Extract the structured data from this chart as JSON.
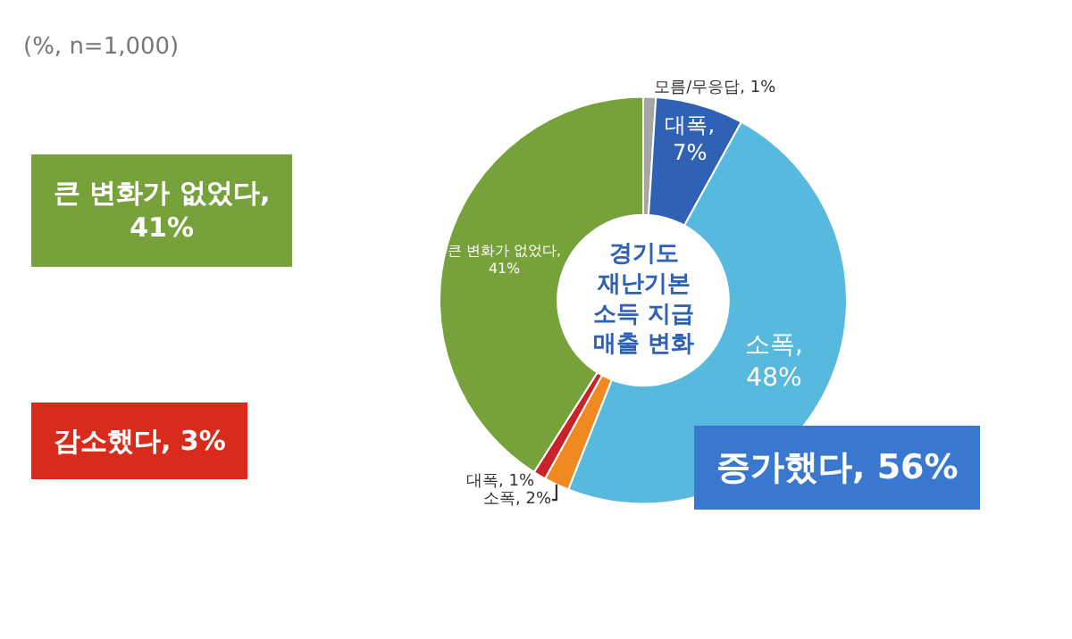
{
  "chart_data": {
    "type": "donut",
    "categories": [
      "모름/무응답",
      "대폭",
      "소폭",
      "소폭",
      "대폭",
      "큰 변화가 없었다"
    ],
    "values": [
      1,
      7,
      48,
      2,
      1,
      41
    ],
    "colors": [
      "#a6a6a6",
      "#2f62b5",
      "#57b9de",
      "#ef8a22",
      "#c8232b",
      "#77a13a"
    ],
    "value_labels": [
      ", 1%",
      ",\n7%",
      ",\n48%",
      ", 2%",
      ", 1%",
      ",\n41%"
    ],
    "legend": false,
    "annotations": [
      "(%, n=1,000)",
      "경기도\n재난기본\n소득 지급\n매출 변화",
      "큰 변화가 없었다,\n41%",
      "감소했다, 3%",
      "증가했다, 56%"
    ]
  }
}
